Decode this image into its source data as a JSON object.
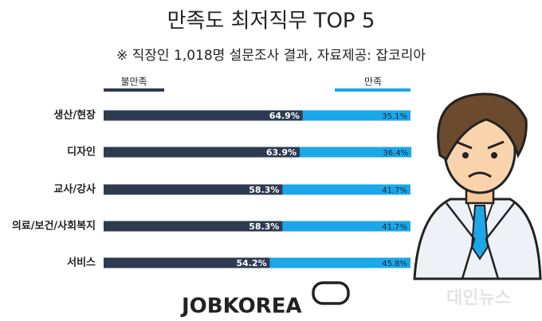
{
  "chart_data": {
    "type": "stacked-bar-horizontal",
    "title": "만족도 최저직무  TOP 5",
    "subtitle": "※ 직장인 1,018명 설문조사 결과, 자료제공: 잡코리아",
    "categories": [
      "생산/현장",
      "디자인",
      "교사/강사",
      "의료/보건/사회복지",
      "서비스"
    ],
    "xlim": [
      0,
      100
    ],
    "legend": "top",
    "series": [
      {
        "name": "불만족",
        "color": "#2d3a52",
        "values": [
          64.9,
          63.9,
          58.3,
          58.3,
          54.2
        ],
        "value_labels": [
          "64.9%",
          "63.9%",
          "58.3%",
          "58.3%",
          "54.2%"
        ]
      },
      {
        "name": "만족",
        "color": "#1ba7e8",
        "values": [
          35.1,
          36.4,
          41.7,
          41.7,
          45.8
        ],
        "value_labels": [
          "35.1%",
          "36.4%",
          "41.7%",
          "41.7%",
          "45.8%"
        ]
      }
    ]
  },
  "logo": "JOBKOREA",
  "watermark": "대인뉴스"
}
